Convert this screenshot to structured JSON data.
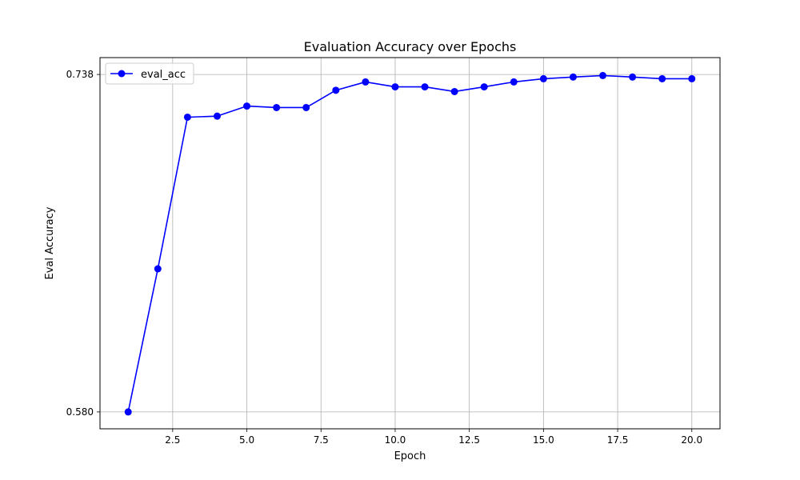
{
  "chart_data": {
    "type": "line",
    "title": "Evaluation Accuracy over Epochs",
    "xlabel": "Epoch",
    "ylabel": "Eval Accuracy",
    "xlim": [
      0.05,
      20.95
    ],
    "ylim": [
      0.5721,
      0.7459
    ],
    "xticks": [
      2.5,
      5.0,
      7.5,
      10.0,
      12.5,
      15.0,
      17.5,
      20.0
    ],
    "xtick_labels": [
      "2.5",
      "5.0",
      "7.5",
      "10.0",
      "12.5",
      "15.0",
      "17.5",
      "20.0"
    ],
    "yticks": [
      0.58,
      0.738
    ],
    "ytick_labels": [
      "0.580",
      "0.738"
    ],
    "grid": true,
    "legend": "upper-left",
    "series": [
      {
        "name": "eval_acc",
        "color": "#0000ff",
        "marker": "circle",
        "x": [
          1,
          2,
          3,
          4,
          5,
          6,
          7,
          8,
          9,
          10,
          11,
          12,
          13,
          14,
          15,
          16,
          17,
          18,
          19,
          20
        ],
        "y": [
          0.58,
          0.647,
          0.718,
          0.7185,
          0.7232,
          0.7225,
          0.7225,
          0.7306,
          0.7345,
          0.7322,
          0.7322,
          0.73,
          0.7322,
          0.7345,
          0.736,
          0.7368,
          0.7375,
          0.7368,
          0.736,
          0.736
        ]
      }
    ]
  }
}
